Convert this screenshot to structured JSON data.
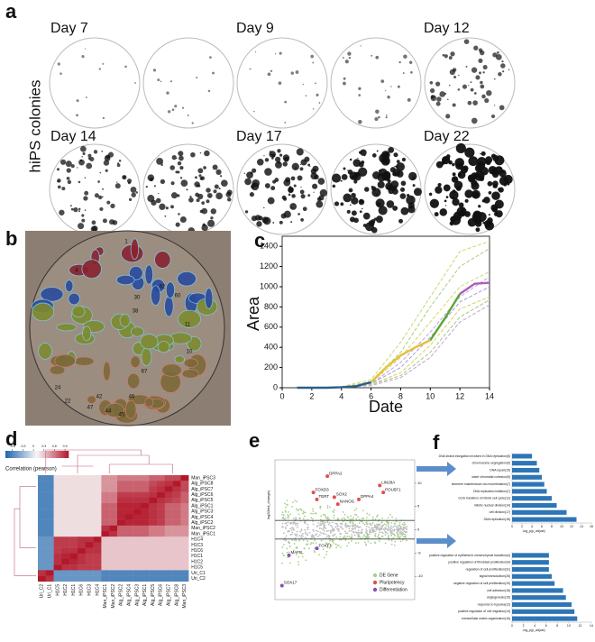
{
  "panel_a": {
    "letter": "a",
    "row_label": "hiPS colonies",
    "days": [
      "Day 7",
      "Day 9",
      "Day 12",
      "Day 14",
      "Day 17",
      "Day 22"
    ]
  },
  "panel_b": {
    "letter": "b",
    "colony_labels": [
      "1",
      "4",
      "30",
      "38",
      "60",
      "62",
      "67",
      "46",
      "24",
      "42",
      "47",
      "44",
      "45",
      "22",
      "10",
      "11"
    ]
  },
  "panel_c": {
    "letter": "c",
    "type": "line",
    "xlabel": "Date",
    "ylabel": "Area",
    "xlim": [
      0,
      14
    ],
    "ylim": [
      0,
      1500
    ],
    "xticks": [
      0,
      2,
      4,
      6,
      8,
      10,
      12,
      14
    ],
    "yticks": [
      0,
      200,
      400,
      600,
      800,
      1000,
      1200,
      1400
    ],
    "series": [
      {
        "x": [
          4,
          6,
          8,
          10,
          12,
          14
        ],
        "values": [
          10,
          80,
          450,
          900,
          1350,
          1450
        ],
        "color": "#c9d96b",
        "dashed": true
      },
      {
        "x": [
          4,
          6,
          8,
          10,
          12,
          14
        ],
        "values": [
          5,
          60,
          350,
          800,
          1200,
          1380
        ],
        "color": "#a6cf7a",
        "dashed": true
      },
      {
        "x": [
          4,
          6,
          8,
          10,
          12,
          14
        ],
        "values": [
          5,
          50,
          300,
          650,
          1000,
          1150
        ],
        "color": "#d9d66b",
        "dashed": true
      },
      {
        "x": [
          4,
          6,
          8,
          10,
          12,
          14
        ],
        "values": [
          5,
          40,
          250,
          550,
          900,
          1100
        ],
        "color": "#b8a4d8",
        "dashed": true
      },
      {
        "x": [
          4,
          6,
          8,
          10,
          12,
          14
        ],
        "values": [
          5,
          40,
          200,
          500,
          850,
          1000
        ],
        "color": "#a99ad8",
        "dashed": true
      },
      {
        "x": [
          4,
          6,
          8,
          10,
          12,
          14
        ],
        "values": [
          5,
          30,
          150,
          420,
          780,
          900
        ],
        "color": "#d8cf62",
        "dashed": true
      },
      {
        "x": [
          4,
          6,
          8,
          10,
          12,
          14
        ],
        "values": [
          5,
          30,
          120,
          350,
          700,
          870
        ],
        "color": "#9ccc7e",
        "dashed": true
      },
      {
        "x": [
          4,
          6,
          8,
          10,
          12,
          14
        ],
        "values": [
          2,
          20,
          100,
          300,
          650,
          820
        ],
        "color": "#c7a2d6",
        "dashed": true
      },
      {
        "x": [
          1,
          2,
          3,
          4,
          5,
          6
        ],
        "values": [
          0,
          0,
          0,
          5,
          15,
          55
        ],
        "color": "#2b5f8a",
        "dashed": false
      },
      {
        "x": [
          6,
          7,
          8,
          9,
          10
        ],
        "values": [
          55,
          200,
          320,
          400,
          470
        ],
        "color": "#e3c23a",
        "dashed": false
      },
      {
        "x": [
          10,
          11,
          12
        ],
        "values": [
          470,
          690,
          930
        ],
        "color": "#5aa832",
        "dashed": false
      },
      {
        "x": [
          12,
          13,
          14
        ],
        "values": [
          930,
          1030,
          1040
        ],
        "color": "#b05cb8",
        "dashed": false
      }
    ]
  },
  "panel_d": {
    "letter": "d",
    "type": "heatmap",
    "colorbar_label": "Correlation (pearson)",
    "clim": [
      -0.8,
      1.0
    ],
    "colorbar_ticks": [
      -0.6,
      -0.3,
      0,
      0.3,
      0.6,
      0.9
    ],
    "cmap": [
      "#2166ac",
      "#f7f7f7",
      "#b2182b"
    ],
    "row_labels": [
      "Man_iPSC3",
      "Alg_iPSC8",
      "Alg_iPSC7",
      "Alg_iPSC6",
      "Alg_iPSC5",
      "Alg_iPSC1",
      "Alg_iPSC3",
      "Alg_iPSC4",
      "Alg_iPSC2",
      "Man_iPSC2",
      "Man_iPSC1",
      "H1C4",
      "H1C3",
      "H1C6",
      "H1C1",
      "H1C2",
      "H1C5",
      "Uri_C1",
      "Uri_C2"
    ],
    "col_labels": [
      "Uri_C2",
      "Uri_C1",
      "H1C5",
      "H1C2",
      "H1C1",
      "H1C6",
      "H1C3",
      "H1C4",
      "Man_iPSC1",
      "Man_iPSC2",
      "Alg_iPSC2",
      "Alg_iPSC4",
      "Alg_iPSC3",
      "Alg_iPSC1",
      "Alg_iPSC5",
      "Alg_iPSC6",
      "Alg_iPSC7",
      "Alg_iPSC8",
      "Man_iPSC3"
    ],
    "matrix": [
      [
        -0.6,
        -0.6,
        0.2,
        0.2,
        0.2,
        0.2,
        0.2,
        0.2,
        0.5,
        0.5,
        0.6,
        0.6,
        0.6,
        0.6,
        0.7,
        0.7,
        0.8,
        0.8,
        1
      ],
      [
        -0.6,
        -0.6,
        0.2,
        0.2,
        0.2,
        0.2,
        0.2,
        0.2,
        0.5,
        0.5,
        0.7,
        0.7,
        0.7,
        0.7,
        0.8,
        0.85,
        0.9,
        1,
        0.8
      ],
      [
        -0.6,
        -0.6,
        0.2,
        0.2,
        0.2,
        0.2,
        0.2,
        0.2,
        0.5,
        0.5,
        0.7,
        0.7,
        0.7,
        0.7,
        0.85,
        0.9,
        1,
        0.9,
        0.8
      ],
      [
        -0.6,
        -0.6,
        0.2,
        0.2,
        0.2,
        0.2,
        0.2,
        0.2,
        0.6,
        0.6,
        0.85,
        0.85,
        0.85,
        0.85,
        0.9,
        1,
        0.9,
        0.85,
        0.7
      ],
      [
        -0.6,
        -0.6,
        0.2,
        0.2,
        0.2,
        0.2,
        0.2,
        0.2,
        0.6,
        0.6,
        0.9,
        0.9,
        0.9,
        0.9,
        1,
        0.9,
        0.85,
        0.8,
        0.7
      ],
      [
        -0.6,
        -0.6,
        0.2,
        0.2,
        0.2,
        0.2,
        0.2,
        0.2,
        0.7,
        0.7,
        0.95,
        0.95,
        0.95,
        1,
        0.9,
        0.85,
        0.7,
        0.7,
        0.6
      ],
      [
        -0.6,
        -0.6,
        0.2,
        0.2,
        0.2,
        0.2,
        0.2,
        0.2,
        0.7,
        0.7,
        0.95,
        0.95,
        1,
        0.95,
        0.9,
        0.85,
        0.7,
        0.7,
        0.6
      ],
      [
        -0.6,
        -0.6,
        0.2,
        0.2,
        0.2,
        0.2,
        0.2,
        0.2,
        0.7,
        0.7,
        0.95,
        1,
        0.95,
        0.95,
        0.9,
        0.85,
        0.7,
        0.7,
        0.6
      ],
      [
        -0.6,
        -0.6,
        0.2,
        0.2,
        0.2,
        0.2,
        0.2,
        0.2,
        0.7,
        0.7,
        1,
        0.95,
        0.95,
        0.95,
        0.9,
        0.85,
        0.7,
        0.7,
        0.6
      ],
      [
        -0.6,
        -0.6,
        0.2,
        0.2,
        0.2,
        0.2,
        0.2,
        0.2,
        0.9,
        1,
        0.7,
        0.7,
        0.7,
        0.7,
        0.6,
        0.6,
        0.5,
        0.5,
        0.5
      ],
      [
        -0.6,
        -0.6,
        0.2,
        0.2,
        0.2,
        0.2,
        0.2,
        0.2,
        1,
        0.9,
        0.7,
        0.7,
        0.7,
        0.7,
        0.6,
        0.6,
        0.5,
        0.5,
        0.5
      ],
      [
        -0.5,
        -0.5,
        0.85,
        0.85,
        0.85,
        0.9,
        0.9,
        1,
        0.3,
        0.3,
        0.3,
        0.3,
        0.3,
        0.3,
        0.3,
        0.3,
        0.3,
        0.3,
        0.3
      ],
      [
        -0.5,
        -0.5,
        0.85,
        0.85,
        0.85,
        0.9,
        1,
        0.9,
        0.3,
        0.3,
        0.3,
        0.3,
        0.3,
        0.3,
        0.3,
        0.3,
        0.3,
        0.3,
        0.3
      ],
      [
        -0.5,
        -0.5,
        0.85,
        0.9,
        0.9,
        1,
        0.9,
        0.9,
        0.3,
        0.3,
        0.3,
        0.3,
        0.3,
        0.3,
        0.3,
        0.3,
        0.3,
        0.3,
        0.3
      ],
      [
        -0.5,
        -0.5,
        0.9,
        0.95,
        1,
        0.9,
        0.85,
        0.85,
        0.3,
        0.3,
        0.3,
        0.3,
        0.3,
        0.3,
        0.3,
        0.3,
        0.3,
        0.3,
        0.3
      ],
      [
        -0.5,
        -0.5,
        0.9,
        1,
        0.95,
        0.9,
        0.85,
        0.85,
        0.3,
        0.3,
        0.3,
        0.3,
        0.3,
        0.3,
        0.3,
        0.3,
        0.3,
        0.3,
        0.3
      ],
      [
        -0.5,
        -0.5,
        1,
        0.9,
        0.9,
        0.85,
        0.85,
        0.85,
        0.3,
        0.3,
        0.3,
        0.3,
        0.3,
        0.3,
        0.3,
        0.3,
        0.3,
        0.3,
        0.3
      ],
      [
        0.9,
        1,
        -0.5,
        -0.5,
        -0.5,
        -0.5,
        -0.5,
        -0.5,
        -0.6,
        -0.6,
        -0.6,
        -0.6,
        -0.6,
        -0.6,
        -0.6,
        -0.6,
        -0.6,
        -0.6,
        -0.6
      ],
      [
        1,
        0.9,
        -0.5,
        -0.5,
        -0.5,
        -0.5,
        -0.5,
        -0.5,
        -0.6,
        -0.6,
        -0.6,
        -0.6,
        -0.6,
        -0.6,
        -0.6,
        -0.6,
        -0.6,
        -0.6,
        -0.6
      ]
    ]
  },
  "panel_e": {
    "letter": "e",
    "type": "scatter",
    "ylabel": "log2(fold_change)",
    "xlim": [
      0,
      20
    ],
    "ylim": [
      -15,
      15
    ],
    "yticks": [
      -10,
      -5,
      0,
      5,
      10
    ],
    "hlines": [
      2,
      -2
    ],
    "legend": [
      {
        "name": "DE Gene",
        "color": "#a8d08d"
      },
      {
        "name": "Pluripotency",
        "color": "#e05050"
      },
      {
        "name": "Differentiation",
        "color": "#8a4fb0"
      }
    ],
    "genes": [
      {
        "name": "DPPA2",
        "x": 7.5,
        "y": 11.5,
        "group": 1
      },
      {
        "name": "FOXD3",
        "x": 5.5,
        "y": 8,
        "group": 1
      },
      {
        "name": "TERT",
        "x": 6,
        "y": 6.5,
        "group": 1
      },
      {
        "name": "SOX2",
        "x": 8.5,
        "y": 7,
        "group": 1
      },
      {
        "name": "NANOG",
        "x": 9,
        "y": 5.5,
        "group": 1
      },
      {
        "name": "DPPA4",
        "x": 12,
        "y": 6.5,
        "group": 1
      },
      {
        "name": "LIN28A",
        "x": 15,
        "y": 9.5,
        "group": 1
      },
      {
        "name": "POU5F1",
        "x": 15.5,
        "y": 8,
        "group": 1
      },
      {
        "name": "FOXF1",
        "x": 6,
        "y": -4,
        "group": 2
      },
      {
        "name": "MAFB",
        "x": 2,
        "y": -5.5,
        "group": 2
      },
      {
        "name": "SOX17",
        "x": 1,
        "y": -12,
        "group": 2
      }
    ]
  },
  "panel_f": {
    "letter": "f",
    "charts": [
      {
        "type": "barh",
        "xlabel": "-log_p(p_adjust)",
        "xlim": [
          0,
          16
        ],
        "xticks": [
          0,
          2,
          4,
          6,
          8,
          10,
          12,
          14,
          16
        ],
        "color": "#2e75b6",
        "categories": [
          "DNA strand elongation involved in DNA replication(5)",
          "chromosome segregation(9)",
          "DNA repair(15)",
          "sister chromatid cohesion(9)",
          "telomere maintenance via recombination(7)",
          "DNA replication initiation(7)",
          "G1/S transition of mitotic cell cycle(12)",
          "mitotic nuclear division(14)",
          "cell division(17)",
          "DNA replication(18)"
        ],
        "values": [
          4,
          5,
          5.5,
          6,
          6.5,
          7,
          8,
          9,
          11,
          13
        ]
      },
      {
        "type": "barh",
        "xlabel": "-log_p(p_adjust)",
        "xlim": [
          0,
          14
        ],
        "xticks": [
          0,
          2,
          4,
          6,
          8,
          10,
          12,
          14
        ],
        "color": "#2e75b6",
        "categories": [
          "positive regulation of epithelial to mesenchymal transition(4)",
          "positive regulation of fibroblast proliferation(4)",
          "regulation of cell proliferation(31)",
          "signal transduction(26)",
          "negative regulation of cell proliferation(19)",
          "cell adhesion(18)",
          "angiogenesis(15)",
          "response to hypoxia(12)",
          "positive regulation of cell migration(14)",
          "extracellular matrix organization(16)"
        ],
        "values": [
          6.5,
          6.5,
          6.5,
          7,
          7.5,
          9,
          9.5,
          10.5,
          11,
          11.5
        ]
      }
    ]
  }
}
